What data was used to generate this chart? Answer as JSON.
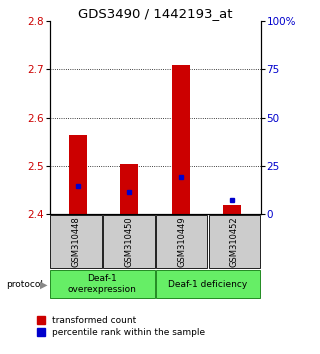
{
  "title": "GDS3490 / 1442193_at",
  "samples": [
    "GSM310448",
    "GSM310450",
    "GSM310449",
    "GSM310452"
  ],
  "bar_bottoms": [
    2.4,
    2.4,
    2.4,
    2.4
  ],
  "bar_tops": [
    2.565,
    2.505,
    2.71,
    2.42
  ],
  "percentile_values": [
    0.145,
    0.115,
    0.195,
    0.075
  ],
  "ylim_left": [
    2.4,
    2.8
  ],
  "ylim_right": [
    0.0,
    1.0
  ],
  "yticks_left": [
    2.4,
    2.5,
    2.6,
    2.7,
    2.8
  ],
  "yticks_right": [
    0.0,
    0.25,
    0.5,
    0.75,
    1.0
  ],
  "ytick_labels_right": [
    "0",
    "25",
    "50",
    "75",
    "100%"
  ],
  "bar_color": "#cc0000",
  "marker_color": "#0000cc",
  "group1_label": "Deaf-1\noverexpression",
  "group2_label": "Deaf-1 deficiency",
  "group_color": "#66ee66",
  "protocol_label": "protocol",
  "legend_red": "transformed count",
  "legend_blue": "percentile rank within the sample",
  "sample_bg_color": "#cccccc",
  "title_fontsize": 9.5,
  "tick_fontsize": 7.5,
  "label_fontsize": 7.5
}
